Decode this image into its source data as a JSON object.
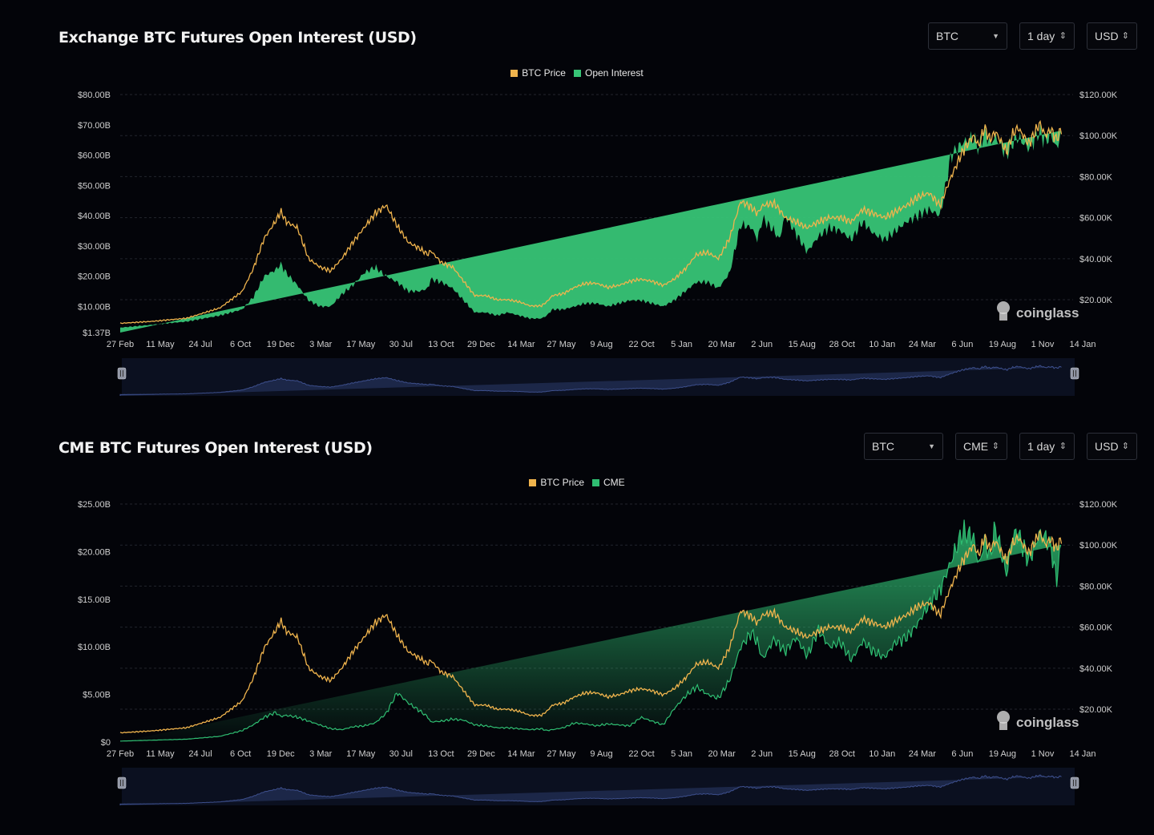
{
  "colors": {
    "price": "#f0b44d",
    "oi": "#37c476",
    "cme": "#2fbe72",
    "grid": "#23252d",
    "axis_text": "#cfcfcf",
    "navigator": "#1c2748",
    "navigator_line": "#3d4f8c"
  },
  "watermark": {
    "text": "coinglass"
  },
  "panels": [
    {
      "title": "Exchange BTC Futures Open Interest (USD)",
      "controls": [
        {
          "label": "BTC",
          "kind": "dropdown"
        },
        {
          "label": "1 day",
          "kind": "stepper"
        },
        {
          "label": "USD",
          "kind": "stepper"
        }
      ],
      "chart_data": {
        "type": "area",
        "series": [
          {
            "name": "BTC Price",
            "axis": "right"
          },
          {
            "name": "Open Interest",
            "axis": "left"
          }
        ],
        "left_axis": {
          "ticks": [
            "$80.00B",
            "$70.00B",
            "$60.00B",
            "$50.00B",
            "$40.00B",
            "$30.00B",
            "$20.00B",
            "$10.00B",
            "$1.37B"
          ],
          "tick_values": [
            80,
            70,
            60,
            50,
            40,
            30,
            20,
            10,
            1.37
          ],
          "min": 1.37,
          "max": 80
        },
        "right_axis": {
          "ticks": [
            "$120.00K",
            "$100.00K",
            "$80.00K",
            "$60.00K",
            "$40.00K",
            "$20.00K"
          ],
          "tick_values": [
            120,
            100,
            80,
            60,
            40,
            20
          ],
          "min": 4,
          "max": 120
        },
        "x_ticks": [
          "27 Feb",
          "11 May",
          "24 Jul",
          "6 Oct",
          "19 Dec",
          "3 Mar",
          "17 May",
          "30 Jul",
          "13 Oct",
          "29 Dec",
          "14 Mar",
          "27 May",
          "9 Aug",
          "22 Oct",
          "5 Jan",
          "20 Mar",
          "2 Jun",
          "15 Aug",
          "28 Oct",
          "10 Jan",
          "24 Mar",
          "6 Jun",
          "19 Aug",
          "1 Nov",
          "14 Jan"
        ],
        "t": [
          0,
          3,
          6,
          9,
          11,
          12,
          13,
          14,
          14.5,
          15,
          16,
          17,
          18,
          19,
          20,
          21,
          22,
          23,
          24,
          25,
          26,
          27,
          27.8,
          28,
          29,
          30,
          31,
          32,
          33,
          34,
          35,
          36,
          37,
          38,
          38.5,
          39,
          40,
          41,
          42,
          43,
          44,
          45,
          46,
          47,
          48,
          49,
          50,
          51,
          52,
          53,
          54,
          55,
          56,
          57,
          57.5,
          58,
          59,
          59.5,
          60,
          61,
          62,
          63,
          64,
          65,
          66,
          67,
          68,
          69,
          70,
          71,
          72,
          73,
          74,
          75,
          76,
          77,
          77.5,
          78,
          78.5,
          79,
          80,
          80.5,
          81,
          82,
          83,
          83.5,
          84,
          84.5,
          85,
          85.5,
          86
        ],
        "price": [
          8.5,
          9.5,
          11,
          16,
          24,
          35,
          50,
          58,
          63,
          58,
          55,
          40,
          36,
          34,
          40,
          48,
          55,
          62,
          66,
          56,
          48,
          45,
          42,
          44,
          38,
          36,
          29,
          22,
          22,
          20,
          20,
          19,
          17,
          17,
          19,
          22,
          23,
          26,
          28,
          28,
          26,
          27,
          29,
          30,
          29,
          27,
          30,
          35,
          42,
          43,
          40,
          50,
          68,
          65,
          62,
          66,
          67,
          64,
          60,
          58,
          55,
          58,
          60,
          60,
          58,
          64,
          62,
          60,
          63,
          66,
          70,
          72,
          66,
          80,
          92,
          100,
          95,
          104,
          98,
          102,
          92,
          100,
          104,
          96,
          106,
          100,
          103,
          98,
          104
        ],
        "oi": [
          3,
          4,
          5,
          7,
          9,
          13,
          20,
          22,
          24,
          21,
          17,
          12,
          10,
          10,
          14,
          17,
          21,
          23,
          20,
          18,
          15,
          15,
          16,
          19,
          18,
          16,
          12,
          8,
          8,
          7,
          8,
          7,
          6,
          6,
          7,
          9,
          9,
          10,
          11,
          11,
          10,
          11,
          12,
          12,
          11,
          10,
          12,
          15,
          18,
          18,
          16,
          21,
          37,
          36,
          32,
          39,
          35,
          32,
          40,
          34,
          28,
          33,
          36,
          35,
          32,
          38,
          34,
          32,
          35,
          38,
          40,
          42,
          40,
          60,
          64,
          66,
          62,
          68,
          64,
          66,
          60,
          64,
          66,
          62,
          68,
          64,
          67,
          62,
          68
        ]
      }
    },
    {
      "title": "CME BTC Futures Open Interest (USD)",
      "controls": [
        {
          "label": "BTC",
          "kind": "dropdown"
        },
        {
          "label": "CME",
          "kind": "stepper"
        },
        {
          "label": "1 day",
          "kind": "stepper"
        },
        {
          "label": "USD",
          "kind": "stepper"
        }
      ],
      "chart_data": {
        "type": "area",
        "series": [
          {
            "name": "BTC Price",
            "axis": "right"
          },
          {
            "name": "CME",
            "axis": "left"
          }
        ],
        "left_axis": {
          "ticks": [
            "$25.00B",
            "$20.00B",
            "$15.00B",
            "$10.00B",
            "$5.00B",
            "$0"
          ],
          "tick_values": [
            25,
            20,
            15,
            10,
            5,
            0
          ],
          "min": 0,
          "max": 25
        },
        "right_axis": {
          "ticks": [
            "$120.00K",
            "$100.00K",
            "$80.00K",
            "$60.00K",
            "$40.00K",
            "$20.00K"
          ],
          "tick_values": [
            120,
            100,
            80,
            60,
            40,
            20
          ],
          "min": 4,
          "max": 120
        },
        "x_ticks": [
          "27 Feb",
          "11 May",
          "24 Jul",
          "6 Oct",
          "19 Dec",
          "3 Mar",
          "17 May",
          "30 Jul",
          "13 Oct",
          "29 Dec",
          "14 Mar",
          "27 May",
          "9 Aug",
          "22 Oct",
          "5 Jan",
          "20 Mar",
          "2 Jun",
          "15 Aug",
          "28 Oct",
          "10 Jan",
          "24 Mar",
          "6 Jun",
          "19 Aug",
          "1 Nov",
          "14 Jan"
        ],
        "t": [
          0,
          3,
          6,
          9,
          11,
          12,
          13,
          14,
          14.5,
          15,
          16,
          17,
          18,
          19,
          20,
          21,
          22,
          23,
          24,
          25,
          26,
          27,
          27.8,
          28,
          29,
          30,
          31,
          32,
          33,
          34,
          35,
          36,
          37,
          38,
          38.5,
          39,
          40,
          41,
          42,
          43,
          44,
          45,
          46,
          47,
          48,
          49,
          50,
          51,
          52,
          53,
          54,
          55,
          56,
          57,
          57.5,
          58,
          59,
          59.5,
          60,
          61,
          62,
          63,
          64,
          65,
          66,
          67,
          68,
          69,
          70,
          71,
          72,
          73,
          74,
          75,
          76,
          77,
          77.5,
          78,
          78.5,
          79,
          80,
          80.5,
          81,
          82,
          83,
          83.5,
          84,
          84.5,
          85,
          85.5,
          86
        ],
        "price": [
          8.5,
          9.5,
          11,
          16,
          24,
          35,
          50,
          58,
          63,
          58,
          55,
          40,
          36,
          34,
          40,
          48,
          55,
          62,
          66,
          56,
          48,
          45,
          42,
          44,
          38,
          36,
          29,
          22,
          22,
          20,
          20,
          19,
          17,
          17,
          19,
          22,
          23,
          26,
          28,
          28,
          26,
          27,
          29,
          30,
          29,
          27,
          30,
          35,
          42,
          43,
          40,
          50,
          68,
          65,
          62,
          66,
          67,
          64,
          60,
          58,
          55,
          58,
          60,
          60,
          58,
          64,
          62,
          60,
          63,
          66,
          70,
          72,
          66,
          80,
          92,
          100,
          95,
          104,
          98,
          102,
          92,
          100,
          104,
          96,
          106,
          100,
          103,
          98,
          104
        ],
        "oi": [
          0.1,
          0.2,
          0.3,
          0.6,
          1.2,
          1.8,
          2.6,
          3.1,
          2.7,
          2.8,
          2.6,
          2.2,
          1.8,
          1.4,
          1.3,
          1.6,
          1.7,
          2.0,
          3.0,
          5.2,
          4.1,
          3.3,
          2.6,
          2.1,
          2.2,
          2.4,
          2.3,
          1.8,
          1.7,
          1.5,
          1.5,
          1.4,
          1.3,
          1.4,
          1.2,
          1.3,
          1.5,
          2.0,
          1.9,
          1.7,
          1.9,
          1.8,
          1.7,
          2.6,
          2.2,
          1.8,
          3.5,
          4.8,
          5.8,
          5.0,
          4.6,
          6.5,
          10.0,
          11.5,
          10.5,
          8.7,
          10.8,
          10.2,
          9.5,
          11.0,
          9.0,
          11.8,
          10.0,
          10.5,
          8.6,
          10.6,
          9.5,
          8.9,
          10.5,
          11.0,
          12.5,
          14.5,
          16.0,
          19.0,
          22.0,
          21.5,
          18.5,
          21.0,
          19.5,
          22.5,
          17.5,
          21.5,
          22.0,
          19.0,
          22.0,
          21.5,
          20.5,
          17.0,
          21.5
        ]
      }
    }
  ]
}
